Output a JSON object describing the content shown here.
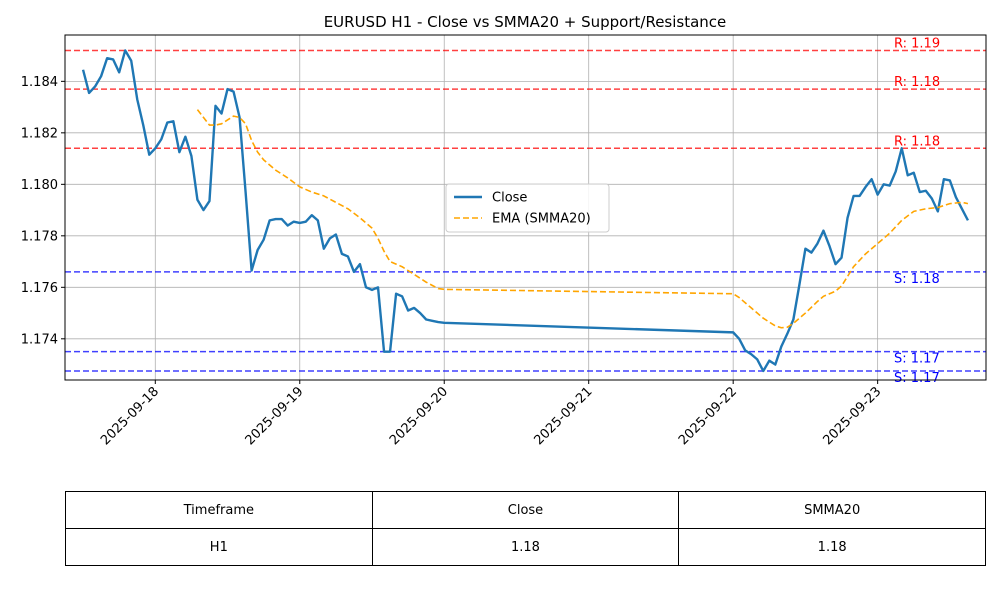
{
  "chart_data": {
    "type": "line",
    "title": "EURUSD H1 - Close vs SMMA20 + Support/Resistance",
    "xlabel": "",
    "ylabel": "",
    "xlim": [
      "2025-09-17 09:00",
      "2025-09-23 18:00"
    ],
    "ylim": [
      1.1724,
      1.1858
    ],
    "x_ticks": [
      "2025-09-18",
      "2025-09-19",
      "2025-09-20",
      "2025-09-21",
      "2025-09-22",
      "2025-09-23"
    ],
    "y_ticks": [
      1.174,
      1.176,
      1.178,
      1.18,
      1.182,
      1.184
    ],
    "y_tick_labels": [
      "1.174",
      "1.176",
      "1.178",
      "1.180",
      "1.182",
      "1.184"
    ],
    "grid": true,
    "legend_position": "center",
    "series": [
      {
        "name": "Close",
        "style": "solid",
        "color": "#1f77b4",
        "points": [
          [
            "2025-09-17 12:00",
            1.18445
          ],
          [
            "2025-09-17 13:00",
            1.18355
          ],
          [
            "2025-09-17 14:00",
            1.1838
          ],
          [
            "2025-09-17 15:00",
            1.1842
          ],
          [
            "2025-09-17 16:00",
            1.1849
          ],
          [
            "2025-09-17 17:00",
            1.18485
          ],
          [
            "2025-09-17 18:00",
            1.18435
          ],
          [
            "2025-09-17 19:00",
            1.1852
          ],
          [
            "2025-09-17 20:00",
            1.1848
          ],
          [
            "2025-09-17 21:00",
            1.1833
          ],
          [
            "2025-09-17 22:00",
            1.1823
          ],
          [
            "2025-09-17 23:00",
            1.18115
          ],
          [
            "2025-09-18 00:00",
            1.1814
          ],
          [
            "2025-09-18 01:00",
            1.18175
          ],
          [
            "2025-09-18 02:00",
            1.1824
          ],
          [
            "2025-09-18 03:00",
            1.18245
          ],
          [
            "2025-09-18 04:00",
            1.18125
          ],
          [
            "2025-09-18 05:00",
            1.18185
          ],
          [
            "2025-09-18 06:00",
            1.1811
          ],
          [
            "2025-09-18 07:00",
            1.1794
          ],
          [
            "2025-09-18 08:00",
            1.179
          ],
          [
            "2025-09-18 09:00",
            1.17935
          ],
          [
            "2025-09-18 10:00",
            1.18305
          ],
          [
            "2025-09-18 11:00",
            1.18275
          ],
          [
            "2025-09-18 12:00",
            1.1837
          ],
          [
            "2025-09-18 13:00",
            1.1836
          ],
          [
            "2025-09-18 14:00",
            1.1826
          ],
          [
            "2025-09-18 15:00",
            1.1797
          ],
          [
            "2025-09-18 16:00",
            1.17665
          ],
          [
            "2025-09-18 17:00",
            1.17745
          ],
          [
            "2025-09-18 18:00",
            1.17785
          ],
          [
            "2025-09-18 19:00",
            1.1786
          ],
          [
            "2025-09-18 20:00",
            1.17865
          ],
          [
            "2025-09-18 21:00",
            1.17865
          ],
          [
            "2025-09-18 22:00",
            1.1784
          ],
          [
            "2025-09-18 23:00",
            1.17855
          ],
          [
            "2025-09-19 00:00",
            1.1785
          ],
          [
            "2025-09-19 01:00",
            1.17855
          ],
          [
            "2025-09-19 02:00",
            1.1788
          ],
          [
            "2025-09-19 03:00",
            1.1786
          ],
          [
            "2025-09-19 04:00",
            1.1775
          ],
          [
            "2025-09-19 05:00",
            1.1779
          ],
          [
            "2025-09-19 06:00",
            1.17805
          ],
          [
            "2025-09-19 07:00",
            1.1773
          ],
          [
            "2025-09-19 08:00",
            1.1772
          ],
          [
            "2025-09-19 09:00",
            1.1766
          ],
          [
            "2025-09-19 10:00",
            1.1769
          ],
          [
            "2025-09-19 11:00",
            1.176
          ],
          [
            "2025-09-19 12:00",
            1.1759
          ],
          [
            "2025-09-19 13:00",
            1.176
          ],
          [
            "2025-09-19 14:00",
            1.1735
          ],
          [
            "2025-09-19 15:00",
            1.1735
          ],
          [
            "2025-09-19 16:00",
            1.17575
          ],
          [
            "2025-09-19 17:00",
            1.17565
          ],
          [
            "2025-09-19 18:00",
            1.1751
          ],
          [
            "2025-09-19 19:00",
            1.1752
          ],
          [
            "2025-09-19 20:00",
            1.175
          ],
          [
            "2025-09-19 21:00",
            1.17475
          ],
          [
            "2025-09-19 22:00",
            1.1747
          ],
          [
            "2025-09-19 23:00",
            1.17465
          ],
          [
            "2025-09-20 00:00",
            1.17462
          ],
          [
            "2025-09-22 00:00",
            1.17425
          ],
          [
            "2025-09-22 01:00",
            1.174
          ],
          [
            "2025-09-22 02:00",
            1.17355
          ],
          [
            "2025-09-22 03:00",
            1.1734
          ],
          [
            "2025-09-22 04:00",
            1.1732
          ],
          [
            "2025-09-22 05:00",
            1.17275
          ],
          [
            "2025-09-22 06:00",
            1.17315
          ],
          [
            "2025-09-22 07:00",
            1.173
          ],
          [
            "2025-09-22 08:00",
            1.1737
          ],
          [
            "2025-09-22 09:00",
            1.1742
          ],
          [
            "2025-09-22 10:00",
            1.17475
          ],
          [
            "2025-09-22 11:00",
            1.1761
          ],
          [
            "2025-09-22 12:00",
            1.1775
          ],
          [
            "2025-09-22 13:00",
            1.17735
          ],
          [
            "2025-09-22 14:00",
            1.1777
          ],
          [
            "2025-09-22 15:00",
            1.1782
          ],
          [
            "2025-09-22 16:00",
            1.1776
          ],
          [
            "2025-09-22 17:00",
            1.1769
          ],
          [
            "2025-09-22 18:00",
            1.17715
          ],
          [
            "2025-09-22 19:00",
            1.1787
          ],
          [
            "2025-09-22 20:00",
            1.17955
          ],
          [
            "2025-09-22 21:00",
            1.17955
          ],
          [
            "2025-09-22 22:00",
            1.1799
          ],
          [
            "2025-09-22 23:00",
            1.1802
          ],
          [
            "2025-09-23 00:00",
            1.1796
          ],
          [
            "2025-09-23 01:00",
            1.18
          ],
          [
            "2025-09-23 02:00",
            1.17995
          ],
          [
            "2025-09-23 03:00",
            1.1805
          ],
          [
            "2025-09-23 04:00",
            1.1814
          ],
          [
            "2025-09-23 05:00",
            1.18035
          ],
          [
            "2025-09-23 06:00",
            1.18045
          ],
          [
            "2025-09-23 07:00",
            1.1797
          ],
          [
            "2025-09-23 08:00",
            1.17975
          ],
          [
            "2025-09-23 09:00",
            1.17945
          ],
          [
            "2025-09-23 10:00",
            1.17895
          ],
          [
            "2025-09-23 11:00",
            1.1802
          ],
          [
            "2025-09-23 12:00",
            1.18015
          ],
          [
            "2025-09-23 13:00",
            1.1795
          ],
          [
            "2025-09-23 14:00",
            1.17905
          ],
          [
            "2025-09-23 15:00",
            1.1786
          ]
        ]
      },
      {
        "name": "EMA (SMMA20)",
        "style": "dashed",
        "color": "#ffa500",
        "points": [
          [
            "2025-09-18 07:00",
            1.1829
          ],
          [
            "2025-09-18 08:00",
            1.1826
          ],
          [
            "2025-09-18 09:00",
            1.1823
          ],
          [
            "2025-09-18 10:00",
            1.1823
          ],
          [
            "2025-09-18 11:00",
            1.18235
          ],
          [
            "2025-09-18 12:00",
            1.1825
          ],
          [
            "2025-09-18 13:00",
            1.18265
          ],
          [
            "2025-09-18 14:00",
            1.1826
          ],
          [
            "2025-09-18 15:00",
            1.18235
          ],
          [
            "2025-09-18 16:00",
            1.1817
          ],
          [
            "2025-09-18 17:00",
            1.18125
          ],
          [
            "2025-09-18 18:00",
            1.18095
          ],
          [
            "2025-09-18 20:00",
            1.18055
          ],
          [
            "2025-09-18 22:00",
            1.18025
          ],
          [
            "2025-09-19 00:00",
            1.1799
          ],
          [
            "2025-09-19 02:00",
            1.1797
          ],
          [
            "2025-09-19 04:00",
            1.17955
          ],
          [
            "2025-09-19 06:00",
            1.1793
          ],
          [
            "2025-09-19 08:00",
            1.17905
          ],
          [
            "2025-09-19 10:00",
            1.1787
          ],
          [
            "2025-09-19 12:00",
            1.1783
          ],
          [
            "2025-09-19 13:00",
            1.1779
          ],
          [
            "2025-09-19 14:00",
            1.1774
          ],
          [
            "2025-09-19 15:00",
            1.177
          ],
          [
            "2025-09-19 17:00",
            1.1768
          ],
          [
            "2025-09-19 19:00",
            1.1765
          ],
          [
            "2025-09-19 21:00",
            1.1762
          ],
          [
            "2025-09-19 23:00",
            1.17595
          ],
          [
            "2025-09-20 00:00",
            1.17592
          ],
          [
            "2025-09-22 00:00",
            1.17575
          ],
          [
            "2025-09-22 01:00",
            1.1756
          ],
          [
            "2025-09-22 03:00",
            1.1752
          ],
          [
            "2025-09-22 05:00",
            1.1748
          ],
          [
            "2025-09-22 07:00",
            1.1745
          ],
          [
            "2025-09-22 08:00",
            1.17443
          ],
          [
            "2025-09-22 09:00",
            1.17445
          ],
          [
            "2025-09-22 10:00",
            1.1746
          ],
          [
            "2025-09-22 12:00",
            1.175
          ],
          [
            "2025-09-22 14:00",
            1.17545
          ],
          [
            "2025-09-22 15:00",
            1.17565
          ],
          [
            "2025-09-22 17:00",
            1.17585
          ],
          [
            "2025-09-22 18:00",
            1.17605
          ],
          [
            "2025-09-22 20:00",
            1.1768
          ],
          [
            "2025-09-22 22:00",
            1.1773
          ],
          [
            "2025-09-23 00:00",
            1.1777
          ],
          [
            "2025-09-23 02:00",
            1.1781
          ],
          [
            "2025-09-23 04:00",
            1.1786
          ],
          [
            "2025-09-23 06:00",
            1.17895
          ],
          [
            "2025-09-23 08:00",
            1.17905
          ],
          [
            "2025-09-23 10:00",
            1.1791
          ],
          [
            "2025-09-23 12:00",
            1.17925
          ],
          [
            "2025-09-23 14:00",
            1.1793
          ],
          [
            "2025-09-23 15:00",
            1.17925
          ]
        ]
      }
    ],
    "levels": [
      {
        "kind": "resistance",
        "value": 1.1852,
        "label": "R: 1.19",
        "color": "#ff0000"
      },
      {
        "kind": "resistance",
        "value": 1.1837,
        "label": "R: 1.18",
        "color": "#ff0000"
      },
      {
        "kind": "resistance",
        "value": 1.1814,
        "label": "R: 1.18",
        "color": "#ff0000"
      },
      {
        "kind": "support",
        "value": 1.1766,
        "label": "S: 1.18",
        "color": "#0000ff"
      },
      {
        "kind": "support",
        "value": 1.1735,
        "label": "S: 1.17",
        "color": "#0000ff"
      },
      {
        "kind": "support",
        "value": 1.17275,
        "label": "S: 1.17",
        "color": "#0000ff"
      }
    ]
  },
  "table": {
    "headers": [
      "Timeframe",
      "Close",
      "SMMA20"
    ],
    "rows": [
      [
        "H1",
        "1.18",
        "1.18"
      ]
    ]
  }
}
